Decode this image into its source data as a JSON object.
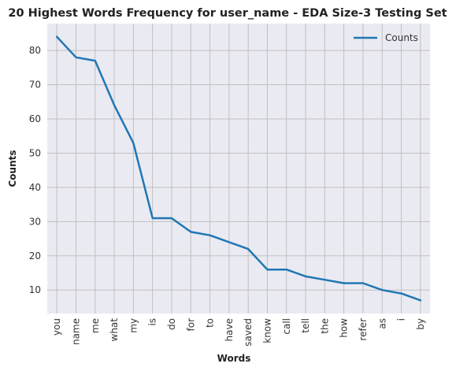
{
  "chart_data": {
    "type": "line",
    "title": "20 Highest Words Frequency for user_name - EDA Size-3 Testing Set",
    "xlabel": "Words",
    "ylabel": "Counts",
    "categories": [
      "you",
      "name",
      "me",
      "what",
      "my",
      "is",
      "do",
      "for",
      "to",
      "have",
      "saved",
      "know",
      "call",
      "tell",
      "the",
      "how",
      "refer",
      "as",
      "i",
      "by"
    ],
    "series": [
      {
        "name": "Counts",
        "values": [
          84,
          78,
          77,
          64,
          53,
          31,
          31,
          27,
          26,
          24,
          22,
          16,
          16,
          14,
          13,
          12,
          12,
          10,
          9,
          7
        ]
      }
    ],
    "ylim": [
      3.15,
      87.85
    ],
    "yticks": [
      10,
      20,
      30,
      40,
      50,
      60,
      70,
      80
    ],
    "grid": true,
    "legend_position": "top-right",
    "colors": {
      "line": "#1f77b4",
      "plot_bg": "#eaeaf2",
      "grid": "#c0c0c0"
    }
  }
}
